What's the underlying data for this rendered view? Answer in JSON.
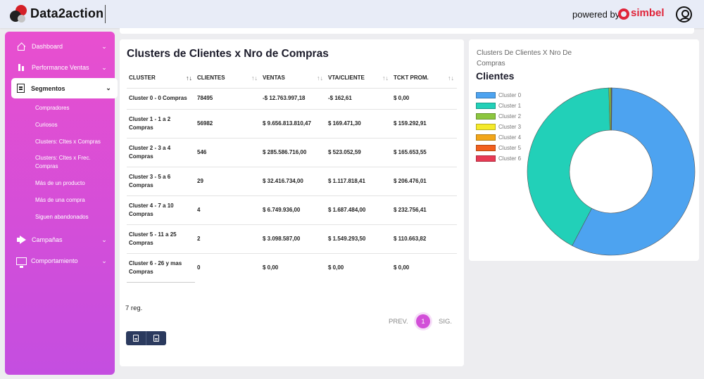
{
  "brand": {
    "name": "Data2action",
    "powered_by": "powered by",
    "partner": "simbel"
  },
  "sidebar": {
    "items": [
      {
        "label": "Dashboard",
        "icon": "home-icon"
      },
      {
        "label": "Performance Ventas",
        "icon": "bar-chart-icon"
      },
      {
        "label": "Segmentos",
        "icon": "document-icon",
        "active": true
      },
      {
        "label": "Campañas",
        "icon": "megaphone-icon"
      },
      {
        "label": "Comportamiento",
        "icon": "monitor-icon"
      }
    ],
    "sub_items": [
      "Compradores",
      "Curiosos",
      "Clusters: Cltes x Compras",
      "Clusters: Cltes x Frec. Compras",
      "Más de un producto",
      "Más de una compra",
      "Siguen abandonados"
    ]
  },
  "table_card": {
    "title": "Clusters de Clientes x Nro de Compras",
    "columns": [
      "CLUSTER",
      "CLIENTES",
      "VENTAS",
      "VTA/CLIENTE",
      "TCKT PROM."
    ],
    "rows": [
      {
        "cluster": "Cluster 0 - 0 Compras",
        "clientes": "78495",
        "ventas": "-$ 12.763.997,18",
        "vta_cliente": "-$ 162,61",
        "tckt": "$ 0,00"
      },
      {
        "cluster": "Cluster 1 - 1 a 2 Compras",
        "clientes": "56982",
        "ventas": "$ 9.656.813.810,47",
        "vta_cliente": "$ 169.471,30",
        "tckt": "$ 159.292,91"
      },
      {
        "cluster": "Cluster 2 - 3 a 4 Compras",
        "clientes": "546",
        "ventas": "$ 285.586.716,00",
        "vta_cliente": "$ 523.052,59",
        "tckt": "$ 165.653,55"
      },
      {
        "cluster": "Cluster 3 - 5 a 6 Compras",
        "clientes": "29",
        "ventas": "$ 32.416.734,00",
        "vta_cliente": "$ 1.117.818,41",
        "tckt": "$ 206.476,01"
      },
      {
        "cluster": "Cluster 4 - 7 a 10 Compras",
        "clientes": "4",
        "ventas": "$ 6.749.936,00",
        "vta_cliente": "$ 1.687.484,00",
        "tckt": "$ 232.756,41"
      },
      {
        "cluster": "Cluster 5 - 11 a 25 Compras",
        "clientes": "2",
        "ventas": "$ 3.098.587,00",
        "vta_cliente": "$ 1.549.293,50",
        "tckt": "$ 110.663,82"
      },
      {
        "cluster": "Cluster 6 - 26 y mas Compras",
        "clientes": "0",
        "ventas": "$ 0,00",
        "vta_cliente": "$ 0,00",
        "tckt": "$ 0,00"
      }
    ],
    "record_count": "7 reg.",
    "pager": {
      "prev": "PREV.",
      "current": "1",
      "next": "SIG."
    }
  },
  "chart_card": {
    "subtitle": "Clusters De Clientes X Nro De Compras",
    "title": "Clientes"
  },
  "chart_data": {
    "type": "pie",
    "variant": "doughnut",
    "title": "Clientes",
    "legend_position": "left",
    "categories": [
      "Cluster 0",
      "Cluster 1",
      "Cluster 2",
      "Cluster 3",
      "Cluster 4",
      "Cluster 5",
      "Cluster 6"
    ],
    "values": [
      78495,
      56982,
      546,
      29,
      4,
      2,
      0
    ],
    "colors": [
      "#4da3f0",
      "#22d0b8",
      "#8cc63f",
      "#f5ea2a",
      "#f2a619",
      "#f2601e",
      "#e83a54"
    ]
  }
}
